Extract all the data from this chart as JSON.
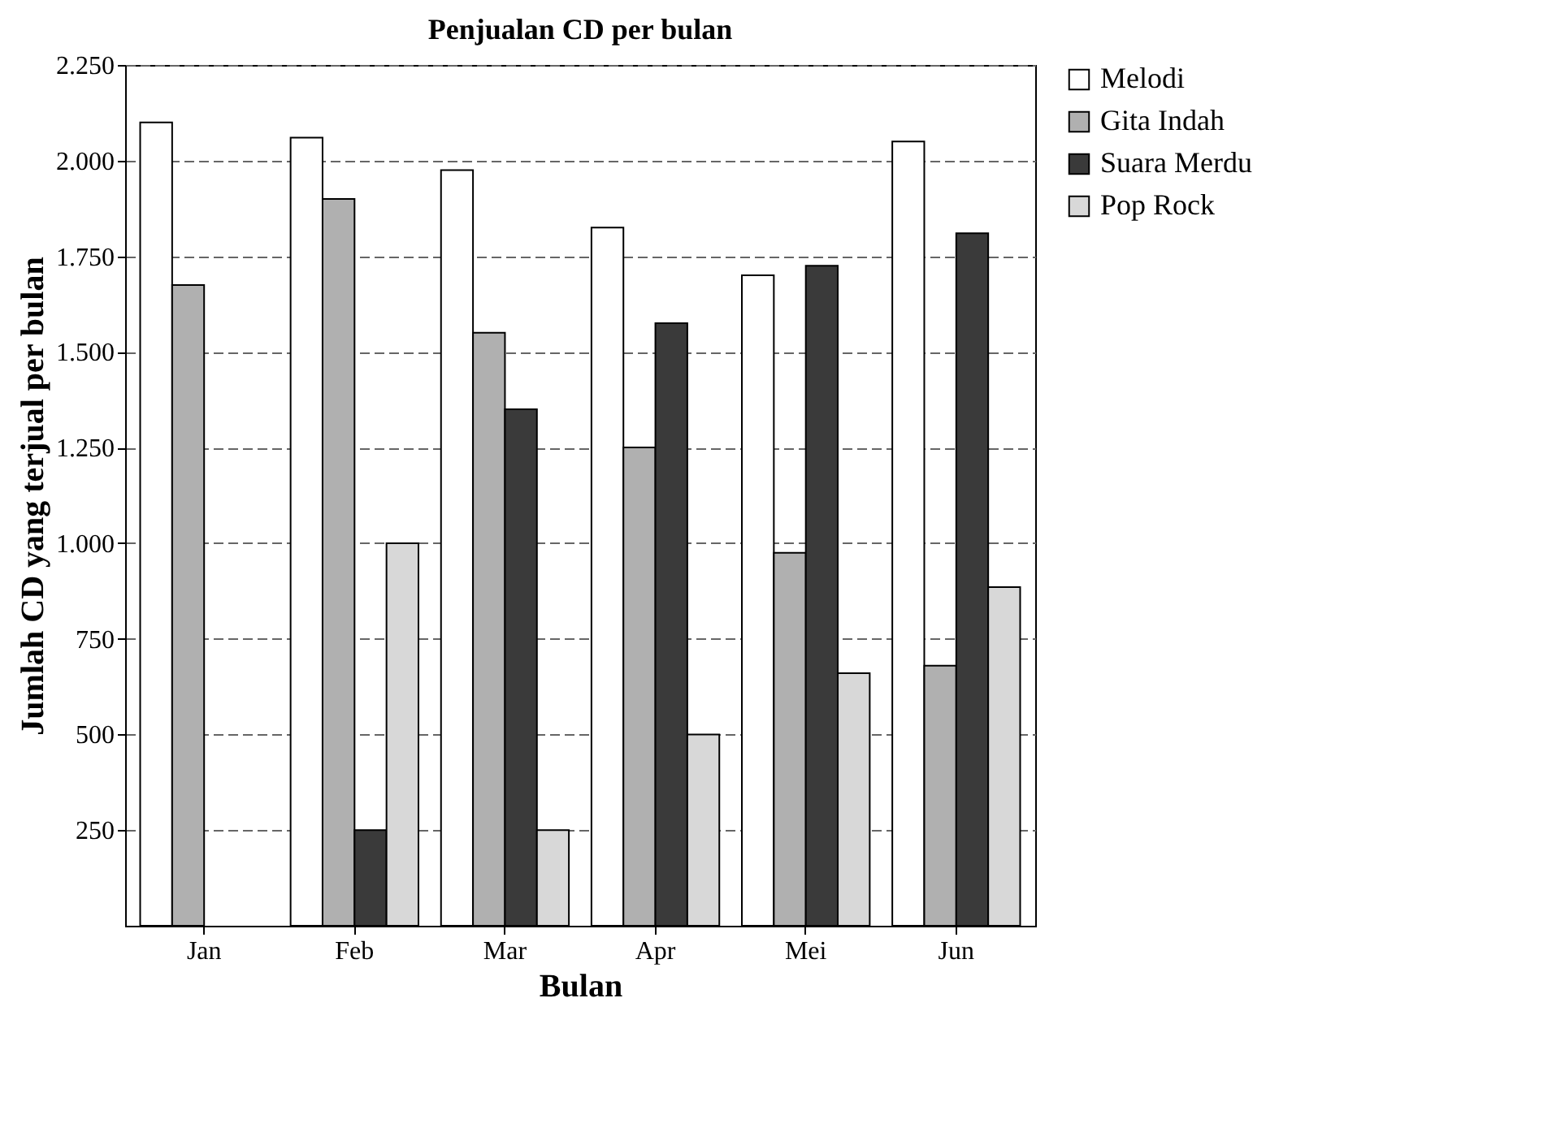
{
  "chart_data": {
    "type": "bar",
    "title": "Penjualan CD per bulan",
    "xlabel": "Bulan",
    "ylabel": "Jumlah CD yang terjual per bulan",
    "categories": [
      "Jan",
      "Feb",
      "Mar",
      "Apr",
      "Mei",
      "Jun"
    ],
    "series": [
      {
        "name": "Melodi",
        "color": "#ffffff",
        "values": [
          2100,
          2060,
          1975,
          1825,
          1700,
          2050
        ]
      },
      {
        "name": "Gita Indah",
        "color": "#b0b0b0",
        "values": [
          1675,
          1900,
          1550,
          1250,
          975,
          680
        ]
      },
      {
        "name": "Suara Merdu",
        "color": "#3a3a3a",
        "values": [
          null,
          250,
          1350,
          1575,
          1725,
          1810
        ]
      },
      {
        "name": "Pop Rock",
        "color": "#d8d8d8",
        "values": [
          null,
          1000,
          250,
          500,
          660,
          885
        ]
      }
    ],
    "ylim": [
      0,
      2250
    ],
    "yticks": [
      {
        "value": 250,
        "label": "250"
      },
      {
        "value": 500,
        "label": "500"
      },
      {
        "value": 750,
        "label": "750"
      },
      {
        "value": 1000,
        "label": "1.000"
      },
      {
        "value": 1250,
        "label": "1.250"
      },
      {
        "value": 1500,
        "label": "1.500"
      },
      {
        "value": 1750,
        "label": "1.750"
      },
      {
        "value": 2000,
        "label": "2.000"
      },
      {
        "value": 2250,
        "label": "2.250"
      }
    ],
    "grid": "y",
    "legend": "top right"
  }
}
